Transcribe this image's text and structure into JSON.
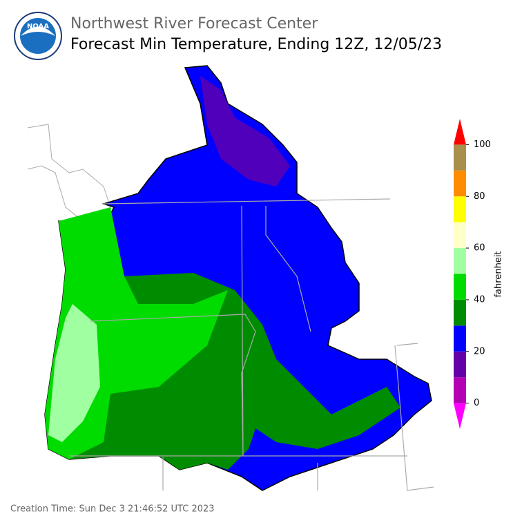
{
  "header": {
    "org": "Northwest River Forecast Center",
    "title": "Forecast Min Temperature, Ending 12Z, 12/05/23",
    "logo": "NOAA"
  },
  "colorbar": {
    "label": "fahrenheit",
    "ylim": [
      -10,
      110
    ],
    "ticks": [
      0,
      20,
      40,
      60,
      80,
      100
    ],
    "bins": [
      0,
      10,
      20,
      30,
      40,
      50,
      60,
      70,
      80,
      90,
      100
    ],
    "colors": [
      "#b400b4",
      "#6400aa",
      "#0000ff",
      "#008c00",
      "#00dc00",
      "#a0ffa0",
      "#ffffc8",
      "#ffff00",
      "#ff8c00",
      "#a8904c"
    ],
    "under_color": "#ff00ff",
    "over_color": "#ff0000"
  },
  "footer": {
    "creation": "Creation Time: Sun Dec 3 21:46:52 UTC 2023"
  }
}
